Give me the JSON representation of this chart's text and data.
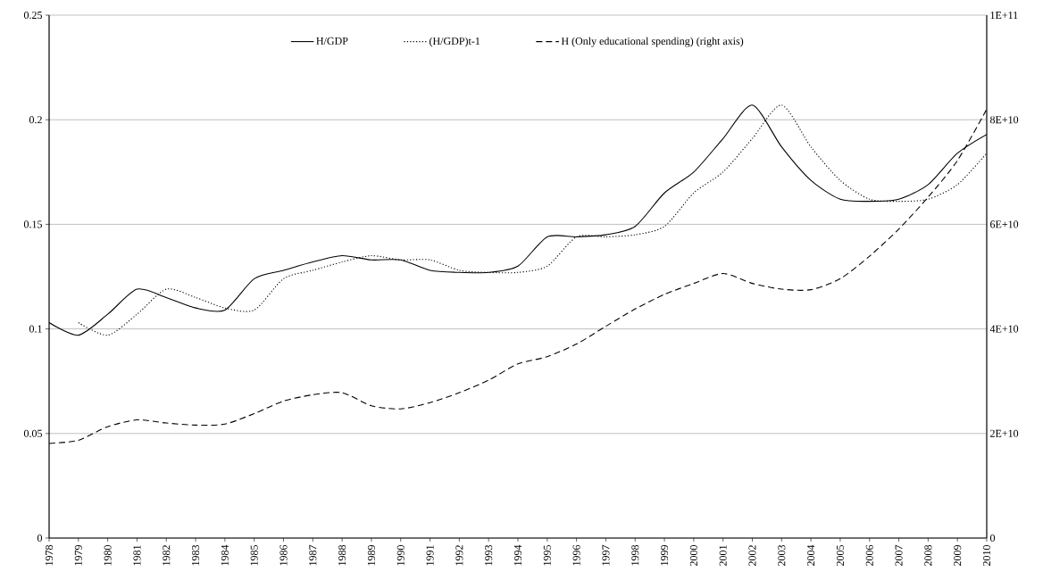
{
  "chart_data": {
    "type": "line",
    "categories": [
      "1978",
      "1979",
      "1980",
      "1981",
      "1982",
      "1983",
      "1984",
      "1985",
      "1986",
      "1987",
      "1988",
      "1989",
      "1990",
      "1991",
      "1992",
      "1993",
      "1994",
      "1995",
      "1996",
      "1997",
      "1998",
      "1999",
      "2000",
      "2001",
      "2002",
      "2003",
      "2004",
      "2005",
      "2006",
      "2007",
      "2008",
      "2009",
      "2010"
    ],
    "series": [
      {
        "name": "H/GDP",
        "color": "#000000",
        "line_style": "solid",
        "values": [
          0.103,
          0.097,
          0.107,
          0.119,
          0.115,
          0.11,
          0.109,
          0.124,
          0.128,
          0.132,
          0.135,
          0.133,
          0.133,
          0.128,
          0.127,
          0.127,
          0.13,
          0.144,
          0.144,
          0.145,
          0.149,
          0.165,
          0.175,
          0.191,
          0.207,
          0.187,
          0.171,
          0.162,
          0.161,
          0.162,
          0.169,
          0.184,
          0.193
        ]
      },
      {
        "name": "(H/GDP)t-1",
        "color": "#000000",
        "line_style": "dotted",
        "values": [
          null,
          0.103,
          0.097,
          0.107,
          0.119,
          0.115,
          0.11,
          0.109,
          0.124,
          0.128,
          0.132,
          0.135,
          0.133,
          0.133,
          0.128,
          0.127,
          0.127,
          0.13,
          0.144,
          0.144,
          0.145,
          0.149,
          0.165,
          0.175,
          0.191,
          0.207,
          0.187,
          0.171,
          0.162,
          0.161,
          0.162,
          0.169,
          0.184
        ]
      },
      {
        "name": "H (Only educational spending) (right axis)",
        "color": "#000000",
        "line_style": "dashed",
        "axis": "y2",
        "values": [
          18100000000,
          18700000000,
          21300000000,
          22600000000,
          22000000000,
          21600000000,
          21800000000,
          23800000000,
          26200000000,
          27400000000,
          27800000000,
          25300000000,
          24700000000,
          25900000000,
          27800000000,
          30200000000,
          33300000000,
          34700000000,
          37100000000,
          40500000000,
          43800000000,
          46600000000,
          48700000000,
          50600000000,
          48700000000,
          47600000000,
          47500000000,
          49600000000,
          53900000000,
          59100000000,
          65200000000,
          72200000000,
          82000000000
        ]
      }
    ],
    "ylim": [
      0,
      0.25
    ],
    "yticks": [
      0,
      0.05,
      0.1,
      0.15,
      0.2,
      0.25
    ],
    "y2lim": [
      0,
      100000000000
    ],
    "y2ticks": [
      0,
      {
        "value": 20000000000,
        "label": "2E+10"
      },
      {
        "value": 40000000000,
        "label": "4E+10"
      },
      {
        "value": 60000000000,
        "label": "6E+10"
      },
      {
        "value": 80000000000,
        "label": "8E+10"
      },
      {
        "value": 100000000000,
        "label": "1E+11"
      }
    ],
    "grid": "y",
    "legend": "top"
  }
}
